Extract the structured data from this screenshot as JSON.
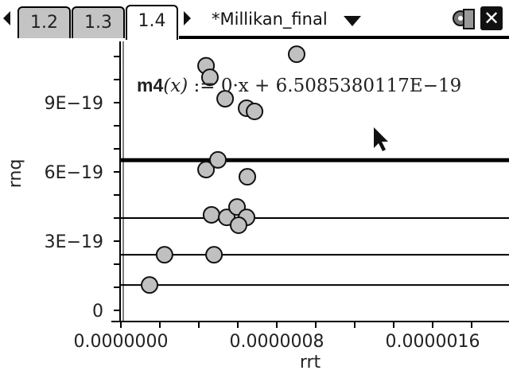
{
  "header": {
    "tabs": [
      {
        "label": "1.2",
        "active": false
      },
      {
        "label": "1.3",
        "active": false
      },
      {
        "label": "1.4",
        "active": true
      }
    ],
    "document_title": "*Millikan_final",
    "close_label": "✕"
  },
  "function_label": {
    "name": "m4",
    "arg": "(x)",
    "definition": " := 0·x + 6.5085380117E−19"
  },
  "chart_data": {
    "type": "scatter",
    "xlabel": "rrt",
    "ylabel": "rnq",
    "xlim": [
      -6.2e-07,
      2e-06
    ],
    "ylim": [
      -5e-20,
      1.17e-18
    ],
    "x_ticks": [
      {
        "value": 0,
        "label": "0.0000000"
      },
      {
        "value": 8e-07,
        "label": "0.0000008"
      },
      {
        "value": 1.6e-06,
        "label": "0.0000016"
      }
    ],
    "y_ticks": [
      {
        "value": 0,
        "label": "0"
      },
      {
        "value": 3e-19,
        "label": "3E−19"
      },
      {
        "value": 6e-19,
        "label": "6E−19"
      },
      {
        "value": 9e-19,
        "label": "9E−19"
      }
    ],
    "x_minor_step": 2e-07,
    "y_minor_step": 1e-19,
    "grid": false,
    "points": [
      {
        "x": 1.47e-07,
        "y": 1.1e-19
      },
      {
        "x": 2.24e-07,
        "y": 2.41e-19
      },
      {
        "x": 4.78e-07,
        "y": 2.41e-19
      },
      {
        "x": 4.65e-07,
        "y": 4.14e-19
      },
      {
        "x": 5.43e-07,
        "y": 4.03e-19
      },
      {
        "x": 5.96e-07,
        "y": 4.48e-19
      },
      {
        "x": 6.45e-07,
        "y": 4.03e-19
      },
      {
        "x": 6.04e-07,
        "y": 3.69e-19
      },
      {
        "x": 4.37e-07,
        "y": 6.1e-19
      },
      {
        "x": 4.98e-07,
        "y": 6.52e-19
      },
      {
        "x": 6.49e-07,
        "y": 5.79e-19
      },
      {
        "x": 4.37e-07,
        "y": 1.06e-18
      },
      {
        "x": 4.57e-07,
        "y": 1.01e-18
      },
      {
        "x": 5.35e-07,
        "y": 9.17e-19
      },
      {
        "x": 6.45e-07,
        "y": 8.76e-19
      },
      {
        "x": 6.86e-07,
        "y": 8.62e-19
      },
      {
        "x": 9.02e-07,
        "y": 1.11e-18
      }
    ],
    "horizontal_lines": [
      {
        "y": 6.5085380117e-19,
        "thick": true
      },
      {
        "y": 4e-19,
        "thick": false
      },
      {
        "y": 2.41e-19,
        "thick": false
      },
      {
        "y": 1.1e-19,
        "thick": false
      }
    ],
    "colors": {
      "point_fill": "#c0c0c0",
      "point_stroke": "#111111",
      "line": "#000000"
    }
  }
}
